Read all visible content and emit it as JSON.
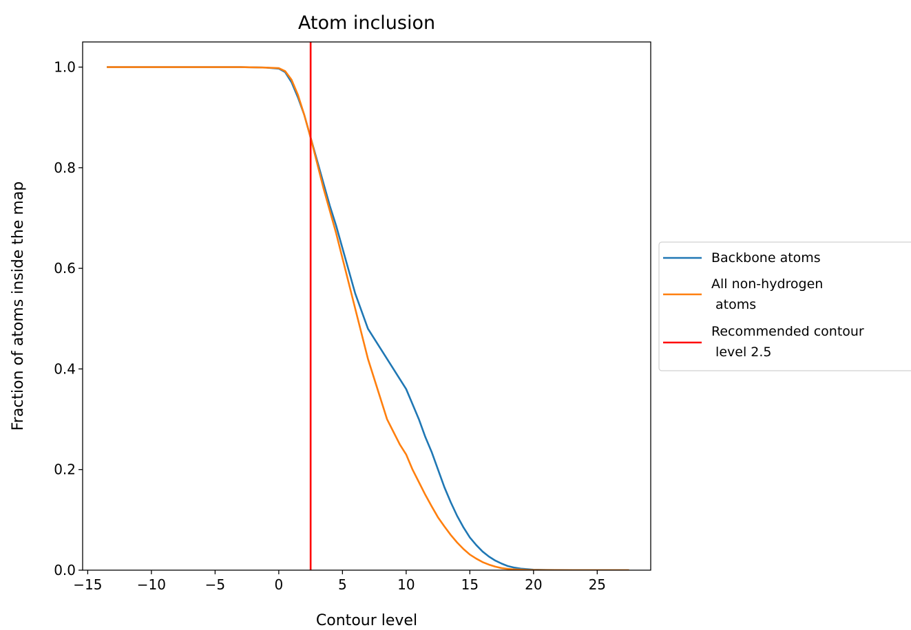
{
  "chart_data": {
    "type": "line",
    "title": "Atom inclusion",
    "xlabel": "Contour level",
    "ylabel": "Fraction of atoms inside the map",
    "xlim": [
      -15.4,
      29.2
    ],
    "ylim": [
      0,
      1.05
    ],
    "xticks": [
      -15,
      -10,
      -5,
      0,
      5,
      10,
      15,
      20,
      25
    ],
    "xtick_labels": [
      "−15",
      "−10",
      "−5",
      "0",
      "5",
      "10",
      "15",
      "20",
      "25"
    ],
    "yticks": [
      0,
      0.2,
      0.4,
      0.6,
      0.8,
      1.0
    ],
    "ytick_labels": [
      "0.0",
      "0.2",
      "0.4",
      "0.6",
      "0.8",
      "1.0"
    ],
    "grid": false,
    "legend_position": "outside-right",
    "series": [
      {
        "name": "Backbone atoms",
        "color": "#1f77b4",
        "x": [
          -13.5,
          -8,
          -3,
          -1,
          0,
          0.5,
          1,
          1.5,
          2,
          2.5,
          3,
          3.5,
          4,
          4.5,
          5,
          5.5,
          6,
          6.5,
          7,
          7.5,
          8,
          8.5,
          9,
          9.5,
          10,
          10.5,
          11,
          11.5,
          12,
          12.5,
          13,
          13.5,
          14,
          14.5,
          15,
          15.5,
          16,
          16.5,
          17,
          17.5,
          18,
          18.5,
          19,
          19.5,
          20,
          21,
          23,
          25,
          27.5
        ],
        "y": [
          1.0,
          1.0,
          1.0,
          0.999,
          0.997,
          0.99,
          0.97,
          0.94,
          0.905,
          0.86,
          0.815,
          0.77,
          0.725,
          0.685,
          0.64,
          0.595,
          0.55,
          0.515,
          0.48,
          0.46,
          0.44,
          0.42,
          0.4,
          0.38,
          0.36,
          0.33,
          0.3,
          0.265,
          0.235,
          0.2,
          0.165,
          0.135,
          0.108,
          0.085,
          0.065,
          0.05,
          0.037,
          0.027,
          0.019,
          0.013,
          0.008,
          0.005,
          0.003,
          0.002,
          0.001,
          0.0005,
          0.0,
          0.0,
          0.0
        ]
      },
      {
        "name": "All non-hydrogen\n atoms",
        "color": "#ff7f0e",
        "x": [
          -13.5,
          -8,
          -3,
          -1,
          0,
          0.5,
          1,
          1.5,
          2,
          2.5,
          3,
          3.5,
          4,
          4.5,
          5,
          5.5,
          6,
          6.5,
          7,
          7.5,
          8,
          8.5,
          9,
          9.5,
          10,
          10.5,
          11,
          11.5,
          12,
          12.5,
          13,
          13.5,
          14,
          14.5,
          15,
          15.5,
          16,
          16.5,
          17,
          17.5,
          18,
          18.5,
          19,
          19.5,
          20,
          21,
          23,
          25,
          27.5
        ],
        "y": [
          1.0,
          1.0,
          1.0,
          0.999,
          0.998,
          0.992,
          0.975,
          0.945,
          0.905,
          0.86,
          0.81,
          0.76,
          0.715,
          0.67,
          0.62,
          0.57,
          0.52,
          0.47,
          0.42,
          0.38,
          0.34,
          0.3,
          0.275,
          0.25,
          0.23,
          0.2,
          0.175,
          0.15,
          0.127,
          0.105,
          0.087,
          0.07,
          0.055,
          0.042,
          0.031,
          0.023,
          0.016,
          0.011,
          0.007,
          0.004,
          0.0025,
          0.0015,
          0.001,
          0.0005,
          0.0003,
          0.0001,
          0.0,
          0.0,
          0.0
        ]
      }
    ],
    "vlines": [
      {
        "name": "Recommended contour\n level 2.5",
        "x": 2.5,
        "color": "#ff0000"
      }
    ]
  }
}
